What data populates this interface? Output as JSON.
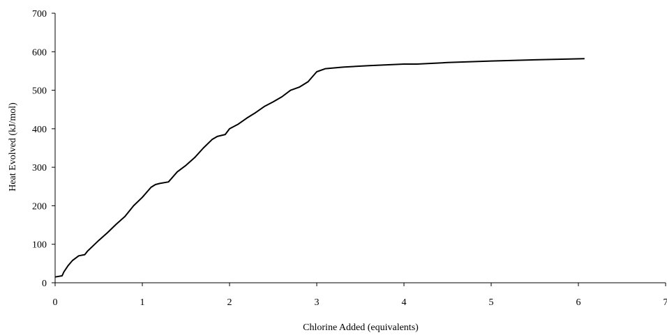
{
  "chart_data": {
    "type": "line",
    "title": "",
    "xlabel": "Chlorine Added (equivalents)",
    "ylabel": "Heat Evolved (kJ/mol)",
    "xlim": [
      0,
      7
    ],
    "ylim": [
      0,
      700
    ],
    "xticks": [
      0,
      1,
      2,
      3,
      4,
      5,
      6,
      7
    ],
    "yticks": [
      0,
      100,
      200,
      300,
      400,
      500,
      600,
      700
    ],
    "grid": false,
    "legend": "none",
    "series": [
      {
        "color": "#000000",
        "points": [
          [
            0.0,
            15
          ],
          [
            0.08,
            18
          ],
          [
            0.1,
            28
          ],
          [
            0.15,
            45
          ],
          [
            0.2,
            58
          ],
          [
            0.27,
            70
          ],
          [
            0.34,
            73
          ],
          [
            0.37,
            82
          ],
          [
            0.5,
            110
          ],
          [
            0.6,
            130
          ],
          [
            0.7,
            152
          ],
          [
            0.8,
            172
          ],
          [
            0.9,
            200
          ],
          [
            1.0,
            222
          ],
          [
            1.1,
            248
          ],
          [
            1.15,
            255
          ],
          [
            1.2,
            258
          ],
          [
            1.3,
            262
          ],
          [
            1.4,
            288
          ],
          [
            1.5,
            305
          ],
          [
            1.6,
            325
          ],
          [
            1.7,
            350
          ],
          [
            1.8,
            372
          ],
          [
            1.86,
            380
          ],
          [
            1.95,
            385
          ],
          [
            2.0,
            400
          ],
          [
            2.1,
            412
          ],
          [
            2.2,
            428
          ],
          [
            2.3,
            442
          ],
          [
            2.4,
            458
          ],
          [
            2.5,
            470
          ],
          [
            2.6,
            483
          ],
          [
            2.7,
            500
          ],
          [
            2.8,
            508
          ],
          [
            2.9,
            522
          ],
          [
            3.0,
            548
          ],
          [
            3.1,
            556
          ],
          [
            3.3,
            560
          ],
          [
            3.6,
            564
          ],
          [
            4.0,
            568
          ],
          [
            4.15,
            568
          ],
          [
            4.5,
            572
          ],
          [
            5.0,
            576
          ],
          [
            5.5,
            579
          ],
          [
            6.07,
            582
          ]
        ]
      }
    ]
  }
}
